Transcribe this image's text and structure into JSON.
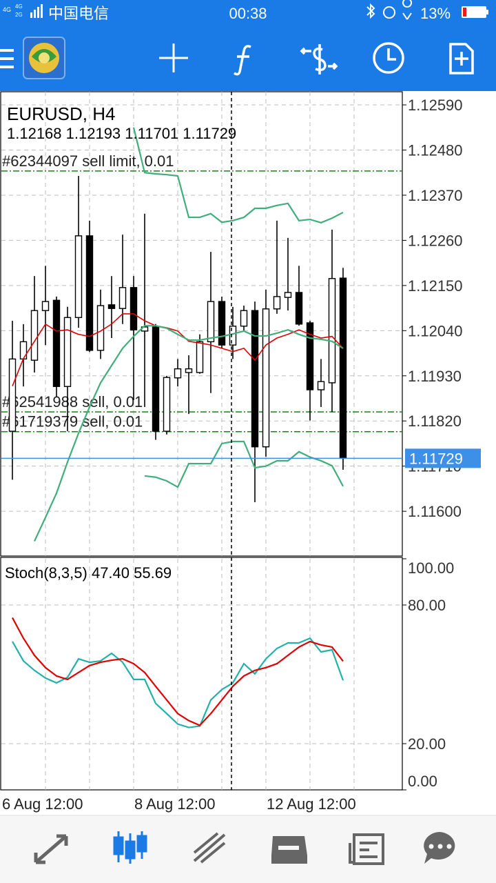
{
  "status_bar": {
    "network": [
      "4G",
      "4G",
      "2G"
    ],
    "carrier": "中国电信",
    "time": "00:38",
    "battery": "13%"
  },
  "chart_data": [
    {
      "type": "candlestick",
      "title": "EURUSD, H4",
      "subtitle": "1.12168 1.12193 1.11701 1.11729",
      "open": [
        1.11795,
        1.11971,
        1.11968,
        1.12089,
        1.12114,
        1.11904,
        1.12072,
        1.12271,
        1.11992,
        1.12103,
        1.12094,
        1.12145,
        1.12039,
        1.12049,
        1.11795,
        1.11925,
        1.11938,
        1.11938,
        1.12013,
        1.12111,
        1.12005,
        1.12051,
        1.12089,
        1.11757,
        1.12093,
        1.12121,
        1.12133,
        1.12059,
        1.11896,
        1.11913,
        1.12168
      ],
      "high": [
        1.12064,
        1.12056,
        1.12173,
        1.12198,
        1.12123,
        1.12098,
        1.12417,
        1.12308,
        1.1214,
        1.12173,
        1.12274,
        1.12173,
        1.12325,
        1.12056,
        1.1193,
        1.11971,
        1.1198,
        1.12031,
        1.12232,
        1.12123,
        1.12098,
        1.12101,
        1.12111,
        1.1214,
        1.12308,
        1.12266,
        1.12198,
        1.12064,
        1.11971,
        1.12286,
        1.12193
      ],
      "low": [
        1.11677,
        1.11904,
        1.11938,
        1.12005,
        1.11879,
        1.11795,
        1.12047,
        1.11988,
        1.11971,
        1.12022,
        1.12056,
        1.11871,
        1.11854,
        1.11774,
        1.11787,
        1.11904,
        1.11837,
        1.11935,
        1.11888,
        1.11997,
        1.11971,
        1.12039,
        1.11622,
        1.11733,
        1.12081,
        1.12089,
        1.12052,
        1.11821,
        1.11854,
        1.11842,
        1.11701
      ],
      "close": [
        1.11971,
        1.12013,
        1.12089,
        1.12111,
        1.11904,
        1.12072,
        1.12271,
        1.11992,
        1.12101,
        1.12094,
        1.12145,
        1.12042,
        1.12049,
        1.11795,
        1.11926,
        1.11947,
        1.11947,
        1.12013,
        1.12111,
        1.12005,
        1.12051,
        1.12089,
        1.11757,
        1.12093,
        1.12123,
        1.12133,
        1.12056,
        1.11896,
        1.11916,
        1.12167,
        1.11729
      ],
      "up_color": "#ffffff",
      "down_color": "#000000",
      "series": [
        {
          "color": "#e00000",
          "values": [
            1.11905,
            1.11972,
            1.12014,
            1.12056,
            1.12039,
            1.12042,
            1.12031,
            1.12026,
            1.12039,
            1.12056,
            1.12081,
            1.12081,
            1.12064,
            1.12052,
            1.12047,
            1.12039,
            1.12014,
            1.1201,
            1.12005,
            1.11997,
            1.11989,
            1.11997,
            1.11968,
            1.12005,
            1.12022,
            1.12031,
            1.12042,
            1.12031,
            1.12022,
            1.12026,
            1.11997
          ]
        },
        {
          "color": "#3fae7a",
          "values": [
            null,
            null,
            1.11527,
            1.11585,
            1.11644,
            1.1172,
            1.1179,
            1.11854,
            1.11913,
            1.11955,
            1.11997,
            1.12026,
            1.12052,
            1.12052,
            1.12046,
            1.12031,
            1.12017,
            1.12017,
            1.12022,
            1.12026,
            1.12032,
            1.12039,
            1.12027,
            1.12027,
            1.12034,
            1.12042,
            1.12031,
            1.12022,
            1.12019,
            1.12014,
            1.11997
          ]
        },
        {
          "color": "#3fae7a",
          "values": [
            null,
            null,
            null,
            null,
            null,
            null,
            null,
            null,
            null,
            null,
            null,
            1.12535,
            1.12425,
            1.12422,
            1.1242,
            1.12417,
            1.12316,
            1.12316,
            1.12325,
            1.12304,
            1.12308,
            1.12316,
            1.12338,
            1.12338,
            1.12345,
            1.1235,
            1.12308,
            1.12311,
            1.12303,
            1.12314,
            1.12328
          ]
        },
        {
          "color": "#3fae7a",
          "values": [
            null,
            null,
            null,
            null,
            null,
            null,
            null,
            null,
            null,
            null,
            null,
            null,
            1.11686,
            1.11683,
            1.11674,
            1.11659,
            1.11716,
            1.11716,
            1.11716,
            1.11765,
            1.1177,
            1.1177,
            1.11706,
            1.1171,
            1.11723,
            1.11723,
            1.11745,
            1.11732,
            1.11723,
            1.11711,
            1.11661
          ]
        }
      ],
      "levels": [
        {
          "label": "#62344097 sell limit, 0.01",
          "value": 1.12429,
          "color": "#0a8a0a"
        },
        {
          "label": "#62541988 sell, 0.01",
          "value": 1.11842,
          "color": "#0a8a0a"
        },
        {
          "label": "#61719379 sell, 0.01",
          "value": 1.11794,
          "color": "#0a8a0a"
        }
      ],
      "last_price": 1.11729,
      "last_price_color": "#3d8fe8",
      "xlim": [
        -1,
        35.375
      ],
      "xticks": [
        {
          "value": -1,
          "label": "6 Aug 12:00"
        },
        {
          "value": 11,
          "label": "8 Aug 12:00"
        },
        {
          "value": 23,
          "label": "12 Aug 12:00"
        }
      ],
      "xgrid": [
        3,
        7,
        11,
        15,
        19,
        23,
        27,
        31
      ],
      "ylim": [
        1.11491,
        1.12622
      ],
      "yticks": [
        {
          "value": 1.1259,
          "label": "1.12590"
        },
        {
          "value": 1.1248,
          "label": "1.12480"
        },
        {
          "value": 1.1237,
          "label": "1.12370"
        },
        {
          "value": 1.1226,
          "label": "1.12260"
        },
        {
          "value": 1.1215,
          "label": "1.12150"
        },
        {
          "value": 1.1204,
          "label": "1.12040"
        },
        {
          "value": 1.1193,
          "label": "1.11930"
        },
        {
          "value": 1.1182,
          "label": "1.11820"
        },
        {
          "value": 1.1171,
          "label": "1.11710"
        },
        {
          "value": 1.116,
          "label": "1.11600"
        }
      ],
      "grid": true
    },
    {
      "type": "line",
      "title": "Stoch(8,3,5) 47.40 55.69",
      "series": [
        {
          "color": "#20b2aa",
          "values": [
            64.2,
            55.8,
            51.7,
            48.4,
            46.3,
            48.7,
            56.7,
            55.2,
            55.8,
            59.1,
            55.2,
            47.8,
            47.8,
            37.4,
            33.0,
            28.5,
            27.0,
            27.6,
            38.9,
            43.4,
            46.3,
            54.6,
            50.2,
            56.7,
            61.2,
            63.6,
            63.6,
            65.6,
            59.7,
            60.6,
            47.4
          ]
        },
        {
          "color": "#e00000",
          "values": [
            74.5,
            65.6,
            58.2,
            52.9,
            49.3,
            47.8,
            50.8,
            53.8,
            55.2,
            56.1,
            56.7,
            54.6,
            50.8,
            44.8,
            38.9,
            33.0,
            30.0,
            27.9,
            33.0,
            38.9,
            44.8,
            49.3,
            51.7,
            52.9,
            54.6,
            58.2,
            61.8,
            64.2,
            62.7,
            61.8,
            55.69
          ]
        }
      ],
      "ylim": [
        0,
        100
      ],
      "yticks": [
        {
          "value": 100,
          "label": "100.00"
        },
        {
          "value": 80,
          "label": "80.00"
        },
        {
          "value": 20,
          "label": "20.00"
        },
        {
          "value": 0,
          "label": "0.00"
        }
      ],
      "grid": true
    }
  ]
}
